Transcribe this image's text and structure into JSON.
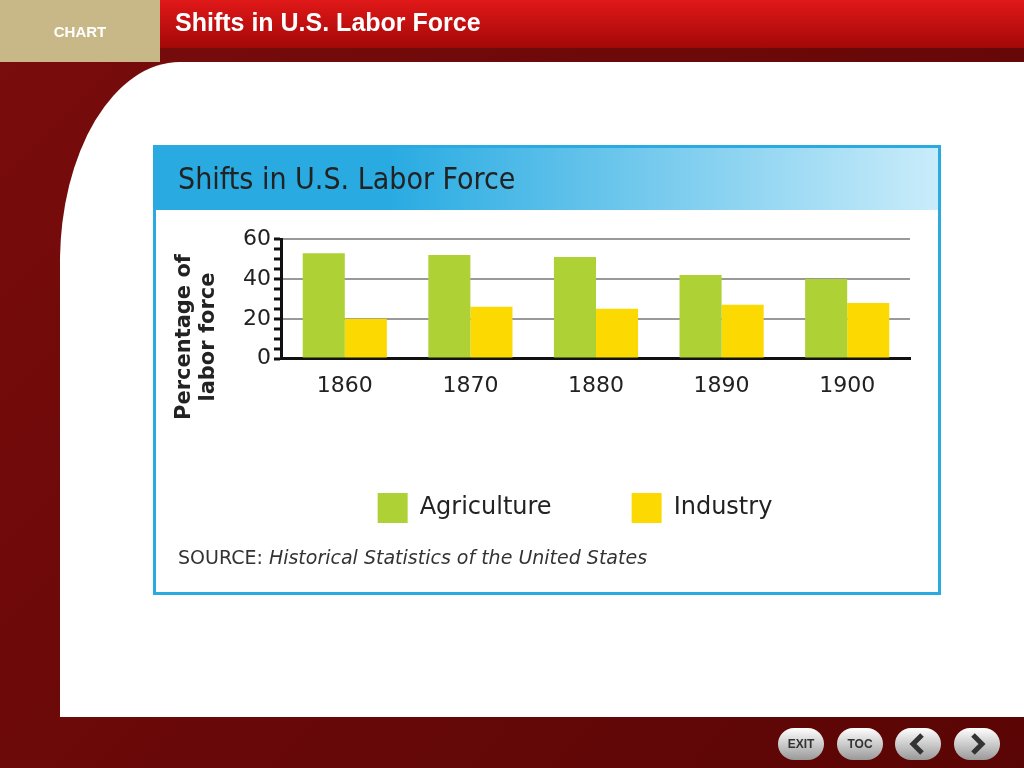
{
  "chart_data": {
    "type": "bar",
    "title": "Shifts in U.S. Labor Force",
    "subtitle": "Shifts in U.S. Labor Force",
    "ylabel": "Percentage of labor force",
    "categories": [
      "1860",
      "1870",
      "1880",
      "1890",
      "1900"
    ],
    "series": [
      {
        "name": "Agriculture",
        "color": "#aed136",
        "values": [
          53,
          52,
          51,
          42,
          40
        ]
      },
      {
        "name": "Industry",
        "color": "#fcd900",
        "values": [
          20,
          26,
          25,
          27,
          28
        ]
      }
    ],
    "ylim": [
      0,
      60
    ],
    "yticks": [
      0,
      {
        "value": 5,
        "label": null
      },
      {
        "value": 10,
        "label": null
      },
      {
        "value": 15,
        "label": null
      },
      20,
      {
        "value": 25,
        "label": null
      },
      {
        "value": 30,
        "label": null
      },
      {
        "value": 35,
        "label": null
      },
      40,
      {
        "value": 45,
        "label": null
      },
      {
        "value": 50,
        "label": null
      },
      {
        "value": 55,
        "label": null
      },
      60
    ],
    "grid": "y",
    "legend": "bottom",
    "annotations": [
      "CHART",
      "SOURCE: Historical Statistics of the United States",
      "EXIT",
      "TOC"
    ]
  }
}
